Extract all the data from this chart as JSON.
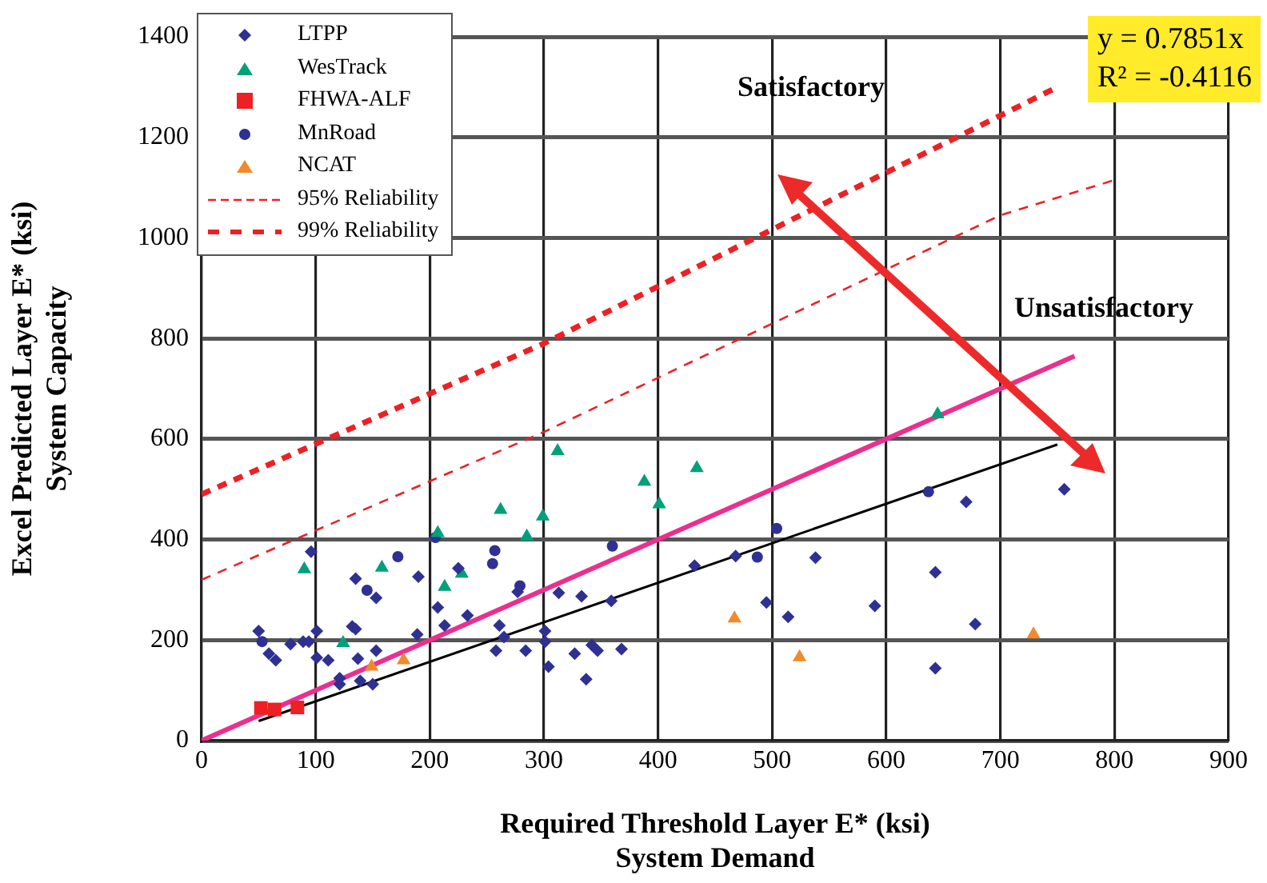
{
  "chart_data": {
    "type": "scatter",
    "xlabel": "Required Threshold Layer E* (ksi)\nSystem Demand",
    "ylabel": "Excel Predicted Layer E* (ksi)\nSystem Capacity",
    "xlim": [
      0,
      900
    ],
    "xticks": [
      0,
      100,
      200,
      300,
      400,
      500,
      600,
      700,
      800,
      900
    ],
    "ylim": [
      0,
      1400
    ],
    "yticks": [
      0,
      200,
      400,
      600,
      800,
      1000,
      1200,
      1400
    ],
    "grid": true,
    "legend": "top left",
    "annotations": [
      "Satisfactory",
      "Unsatisfactory",
      "y = 0.7851x",
      "R² = -0.4116"
    ],
    "series": [
      {
        "name": "LTPP",
        "marker": "diamond",
        "color": "#2e3192",
        "x": [
          50,
          59,
          65,
          78,
          89,
          94,
          96,
          101,
          101,
          111,
          121,
          121,
          132,
          135,
          135,
          137,
          139,
          150,
          153,
          153,
          190,
          189,
          207,
          213,
          225,
          233,
          261,
          258,
          265,
          277,
          284,
          301,
          301,
          304,
          313,
          327,
          333,
          337,
          342,
          347,
          359,
          368,
          432,
          468,
          495,
          514,
          538,
          590,
          670,
          756,
          643,
          678,
          643
        ],
        "values": [
          218,
          173,
          160,
          192,
          197,
          197,
          376,
          218,
          165,
          160,
          124,
          112,
          227,
          222,
          322,
          163,
          119,
          112,
          179,
          284,
          326,
          211,
          265,
          229,
          343,
          249,
          229,
          179,
          206,
          296,
          179,
          218,
          197,
          147,
          294,
          173,
          287,
          122,
          190,
          179,
          278,
          182,
          348,
          367,
          275,
          246,
          364,
          268,
          475,
          500,
          335,
          232,
          144
        ]
      },
      {
        "name": "WesTrack",
        "marker": "triangle",
        "color": "#00a079",
        "x": [
          90,
          158,
          124,
          207,
          213,
          228,
          262,
          285,
          299,
          312,
          388,
          401,
          434,
          645
        ],
        "values": [
          341,
          344,
          194,
          413,
          306,
          332,
          459,
          406,
          446,
          576,
          515,
          470,
          542,
          649
        ]
      },
      {
        "name": "FHWA-ALF",
        "marker": "square",
        "color": "#ed2024",
        "x": [
          52,
          64,
          84
        ],
        "values": [
          65,
          62,
          66
        ]
      },
      {
        "name": "MnRoad",
        "marker": "circle",
        "color": "#2e3192",
        "x": [
          53,
          205,
          172,
          145,
          257,
          255,
          279,
          360,
          487,
          504,
          637
        ],
        "values": [
          197,
          404,
          366,
          299,
          378,
          352,
          308,
          387,
          365,
          422,
          495
        ]
      },
      {
        "name": "NCAT",
        "marker": "triangle",
        "color": "#f08a2c",
        "x": [
          149,
          177,
          467,
          524,
          729
        ],
        "values": [
          147,
          160,
          243,
          166,
          211
        ]
      },
      {
        "name": "95% Reliability",
        "type": "line",
        "marker": "none",
        "line_style": "dashed",
        "color": "#ed2024",
        "x": [
          0,
          300,
          700,
          800
        ],
        "values": [
          320,
          614,
          1045,
          1115
        ]
      },
      {
        "name": "99% Reliability",
        "type": "line",
        "marker": "none",
        "line_style": "dashed",
        "color": "#ed2024",
        "x": [
          0,
          300,
          750
        ],
        "values": [
          490,
          790,
          1300
        ]
      },
      {
        "type": "line",
        "marker": "none",
        "line_style": "solid",
        "color": "#ec2f8e",
        "x": [
          0,
          765
        ],
        "values": [
          0,
          765
        ]
      },
      {
        "type": "line",
        "marker": "none",
        "line_style": "solid",
        "color": "#000000",
        "x": [
          50,
          750
        ],
        "values": [
          39,
          589
        ]
      }
    ]
  }
}
